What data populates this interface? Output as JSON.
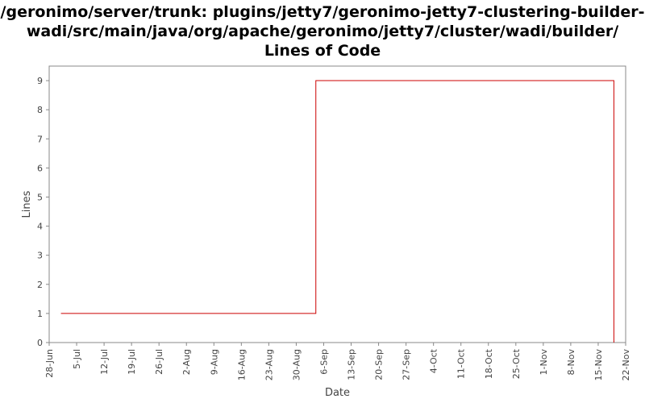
{
  "title_lines": [
    "/geronimo/server/trunk: plugins/jetty7/geronimo-jetty7-clustering-builder-",
    "wadi/src/main/java/org/apache/geronimo/jetty7/cluster/wadi/builder/",
    "Lines of Code"
  ],
  "chart_data": {
    "type": "line",
    "title": "/geronimo/server/trunk: plugins/jetty7/geronimo-jetty7-clustering-builder-wadi/src/main/java/org/apache/geronimo/jetty7/cluster/wadi/builder/ Lines of Code",
    "xlabel": "Date",
    "ylabel": "Lines",
    "x_tick_labels": [
      "28-Jun",
      "5-Jul",
      "12-Jul",
      "19-Jul",
      "26-Jul",
      "2-Aug",
      "9-Aug",
      "16-Aug",
      "23-Aug",
      "30-Aug",
      "6-Sep",
      "13-Sep",
      "20-Sep",
      "27-Sep",
      "4-Oct",
      "11-Oct",
      "18-Oct",
      "25-Oct",
      "1-Nov",
      "8-Nov",
      "15-Nov",
      "22-Nov"
    ],
    "y_ticks": [
      0,
      1,
      2,
      3,
      4,
      5,
      6,
      7,
      8,
      9
    ],
    "xlim": [
      "28-Jun",
      "22-Nov"
    ],
    "ylim": [
      0,
      9.5
    ],
    "step": true,
    "grid": false,
    "color": "#cc0000",
    "series": [
      {
        "points": [
          {
            "x": "1-Jul",
            "y": 1
          },
          {
            "x": "4-Sep",
            "y": 9
          },
          {
            "x": "19-Nov",
            "y": 0
          }
        ]
      }
    ]
  }
}
